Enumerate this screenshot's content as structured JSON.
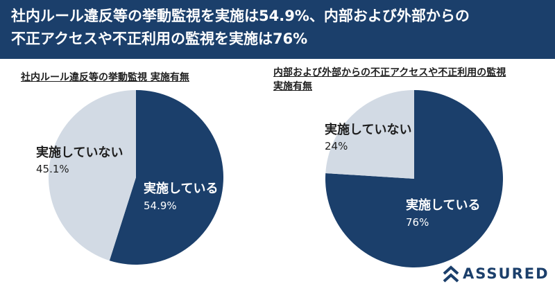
{
  "header": {
    "line1": "社内ルール違反等の挙動監視を実施は54.9%、内部および外部からの",
    "line2": "不正アクセスや不正利用の監視を実施は76%"
  },
  "charts_text": {
    "left_title": "社内ルール違反等の挙動監視 実施有無",
    "right_title_1": "内部および外部からの不正アクセスや不正利用の監視",
    "right_title_2": "実施有無"
  },
  "logo": {
    "text": "ASSURED",
    "icon": "chevron-logo-icon"
  },
  "colors": {
    "navy": "#1b3f6b",
    "light": "#d2dae4",
    "white": "#ffffff"
  },
  "chart_data": [
    {
      "type": "pie",
      "title": "社内ルール違反等の挙動監視 実施有無",
      "slices": [
        {
          "label": "実施している",
          "value": 54.9,
          "value_label": "54.9%",
          "color": "#1b3f6b",
          "text_color": "#ffffff"
        },
        {
          "label": "実施していない",
          "value": 45.1,
          "value_label": "45.1%",
          "color": "#d2dae4",
          "text_color": "#1e1e1e"
        }
      ]
    },
    {
      "type": "pie",
      "title": "内部および外部からの不正アクセスや不正利用の監視 実施有無",
      "slices": [
        {
          "label": "実施している",
          "value": 76,
          "value_label": "76%",
          "color": "#1b3f6b",
          "text_color": "#ffffff"
        },
        {
          "label": "実施していない",
          "value": 24,
          "value_label": "24%",
          "color": "#d2dae4",
          "text_color": "#1e1e1e"
        }
      ]
    }
  ]
}
